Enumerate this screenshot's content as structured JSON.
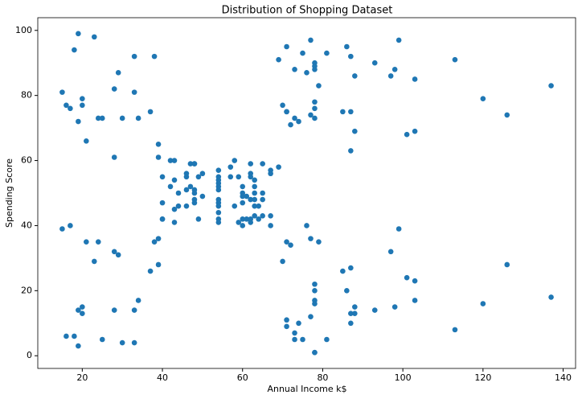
{
  "chart_data": {
    "type": "scatter",
    "title": "Distribution of Shopping Dataset",
    "x_label": "Annual Income k$",
    "y_label": "Spending Score",
    "color": "#1f77b4",
    "x": [
      15,
      15,
      16,
      16,
      17,
      17,
      18,
      18,
      19,
      19,
      19,
      19,
      20,
      20,
      20,
      20,
      21,
      21,
      23,
      23,
      24,
      24,
      25,
      25,
      28,
      28,
      28,
      28,
      29,
      29,
      30,
      30,
      33,
      33,
      33,
      33,
      34,
      34,
      37,
      37,
      38,
      38,
      39,
      39,
      39,
      39,
      40,
      40,
      40,
      40,
      42,
      42,
      43,
      43,
      43,
      43,
      44,
      44,
      46,
      46,
      46,
      46,
      47,
      47,
      48,
      48,
      48,
      48,
      48,
      48,
      49,
      49,
      50,
      50,
      54,
      54,
      54,
      54,
      54,
      54,
      54,
      54,
      54,
      54,
      54,
      54,
      57,
      57,
      58,
      58,
      59,
      59,
      60,
      60,
      60,
      60,
      60,
      60,
      61,
      61,
      62,
      62,
      62,
      62,
      62,
      62,
      63,
      63,
      63,
      63,
      63,
      63,
      64,
      64,
      65,
      65,
      65,
      65,
      67,
      67,
      67,
      67,
      69,
      69,
      70,
      70,
      71,
      71,
      71,
      71,
      71,
      71,
      72,
      72,
      73,
      73,
      73,
      73,
      74,
      74,
      75,
      75,
      76,
      76,
      77,
      77,
      77,
      77,
      78,
      78,
      78,
      78,
      78,
      78,
      78,
      78,
      78,
      78,
      78,
      78,
      79,
      79,
      81,
      81,
      85,
      85,
      86,
      86,
      87,
      87,
      87,
      87,
      87,
      87,
      88,
      88,
      88,
      88,
      93,
      93,
      97,
      97,
      98,
      98,
      99,
      99,
      101,
      101,
      103,
      103,
      103,
      103,
      113,
      113,
      120,
      120,
      126,
      126,
      137,
      137
    ],
    "values": [
      39,
      81,
      6,
      77,
      40,
      76,
      6,
      94,
      3,
      72,
      14,
      99,
      15,
      77,
      13,
      79,
      35,
      66,
      29,
      98,
      35,
      73,
      5,
      73,
      14,
      82,
      32,
      61,
      31,
      87,
      4,
      73,
      4,
      92,
      14,
      81,
      17,
      73,
      26,
      75,
      35,
      92,
      36,
      61,
      28,
      65,
      55,
      47,
      42,
      42,
      52,
      60,
      54,
      60,
      45,
      41,
      50,
      46,
      51,
      46,
      56,
      55,
      52,
      59,
      51,
      59,
      50,
      48,
      59,
      47,
      55,
      42,
      49,
      56,
      47,
      54,
      53,
      48,
      52,
      42,
      51,
      55,
      41,
      44,
      57,
      46,
      58,
      55,
      60,
      46,
      55,
      41,
      49,
      40,
      42,
      52,
      47,
      50,
      42,
      49,
      41,
      48,
      59,
      55,
      56,
      42,
      50,
      46,
      43,
      48,
      52,
      54,
      42,
      46,
      48,
      50,
      43,
      59,
      43,
      57,
      56,
      40,
      58,
      91,
      29,
      77,
      35,
      95,
      11,
      75,
      9,
      75,
      34,
      71,
      5,
      88,
      7,
      73,
      10,
      72,
      5,
      93,
      40,
      87,
      12,
      97,
      36,
      74,
      22,
      90,
      17,
      88,
      20,
      76,
      16,
      89,
      1,
      78,
      1,
      73,
      35,
      83,
      5,
      93,
      26,
      75,
      20,
      95,
      27,
      63,
      13,
      75,
      10,
      92,
      13,
      86,
      15,
      69,
      14,
      90,
      32,
      86,
      15,
      88,
      39,
      97,
      24,
      68,
      17,
      85,
      23,
      69,
      8,
      91,
      16,
      79,
      28,
      74,
      18,
      83
    ],
    "xlim": [
      8.9,
      143.1
    ],
    "ylim": [
      -3.9,
      103.9
    ],
    "xticks": [
      20,
      40,
      60,
      80,
      100,
      120,
      140
    ],
    "yticks": [
      0,
      20,
      40,
      60,
      80,
      100
    ]
  }
}
